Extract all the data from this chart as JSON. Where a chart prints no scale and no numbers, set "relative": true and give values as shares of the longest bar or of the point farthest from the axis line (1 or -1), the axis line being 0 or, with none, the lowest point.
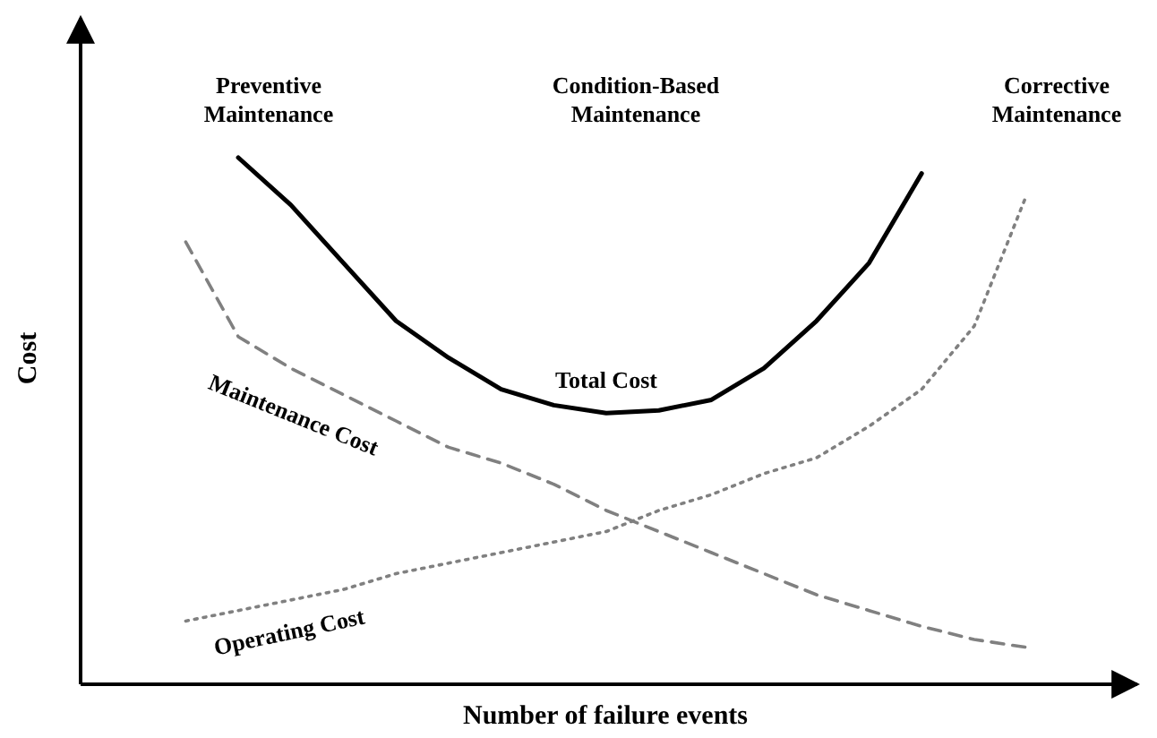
{
  "chart_data": {
    "type": "line",
    "relative": true,
    "xlabel": "Number of failure events",
    "ylabel": "Cost",
    "marker": "none",
    "categories": [
      null,
      null,
      null,
      null,
      null,
      null,
      null,
      null,
      null,
      null,
      null,
      null,
      null,
      null,
      null,
      null,
      null,
      null,
      null,
      null
    ],
    "annotations": [
      "Preventive Maintenance",
      "Condition-Based Maintenance",
      "Corrective Maintenance"
    ],
    "series": [
      {
        "name": "Total Cost",
        "color": "#000000",
        "line_style": "solid",
        "values": [
          null,
          null,
          null,
          1.0,
          0.91,
          0.8,
          0.69,
          0.62,
          0.56,
          0.53,
          0.515,
          0.52,
          0.54,
          0.6,
          0.69,
          0.8,
          0.97,
          null,
          null,
          null
        ]
      },
      {
        "name": "Maintenance Cost",
        "color": "#808080",
        "line_style": "dashed",
        "values": [
          null,
          null,
          0.84,
          0.66,
          0.6,
          0.55,
          0.5,
          0.45,
          0.42,
          0.38,
          0.33,
          0.29,
          0.25,
          0.21,
          0.17,
          0.14,
          0.11,
          0.085,
          0.07,
          null
        ]
      },
      {
        "name": "Operating Cost",
        "color": "#808080",
        "line_style": "dotted",
        "values": [
          null,
          null,
          0.12,
          0.14,
          0.16,
          0.18,
          0.21,
          0.23,
          0.25,
          0.27,
          0.29,
          0.33,
          0.36,
          0.4,
          0.43,
          0.49,
          0.56,
          0.68,
          0.93,
          null
        ]
      }
    ]
  }
}
